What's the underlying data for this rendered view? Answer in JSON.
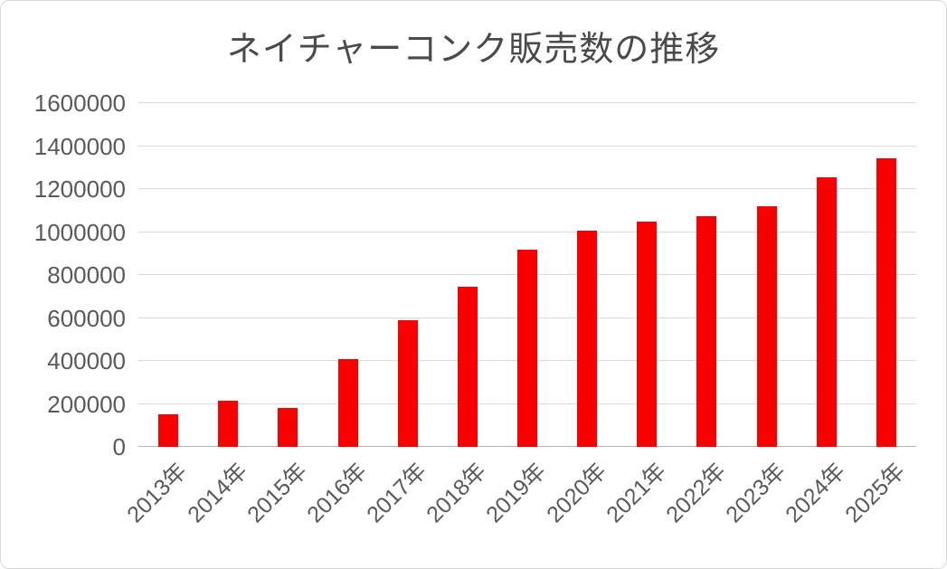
{
  "chart_data": {
    "type": "bar",
    "title": "ネイチャーコンク販売数の推移",
    "categories": [
      "2013年",
      "2014年",
      "2015年",
      "2016年",
      "2017年",
      "2018年",
      "2019年",
      "2020年",
      "2021年",
      "2022年",
      "2023年",
      "2024年",
      "2025年"
    ],
    "values": [
      150000,
      215000,
      180000,
      410000,
      590000,
      745000,
      920000,
      1005000,
      1050000,
      1075000,
      1120000,
      1255000,
      1345000
    ],
    "xlabel": "",
    "ylabel": "",
    "ylim": [
      0,
      1600000
    ],
    "ytick_step": 200000,
    "ytick_labels": [
      "0",
      "200000",
      "400000",
      "600000",
      "800000",
      "1000000",
      "1200000",
      "1400000",
      "1600000"
    ],
    "grid": true,
    "legend": null,
    "legend_position": "none",
    "colors": {
      "bar": "#fa0000",
      "gridline": "#d9d9d9",
      "axis_line": "#b5b5b5",
      "tick_text": "#595959",
      "title_text": "#4a4a4a",
      "background": "#ffffff",
      "card_border": "#d9d9d9"
    }
  }
}
